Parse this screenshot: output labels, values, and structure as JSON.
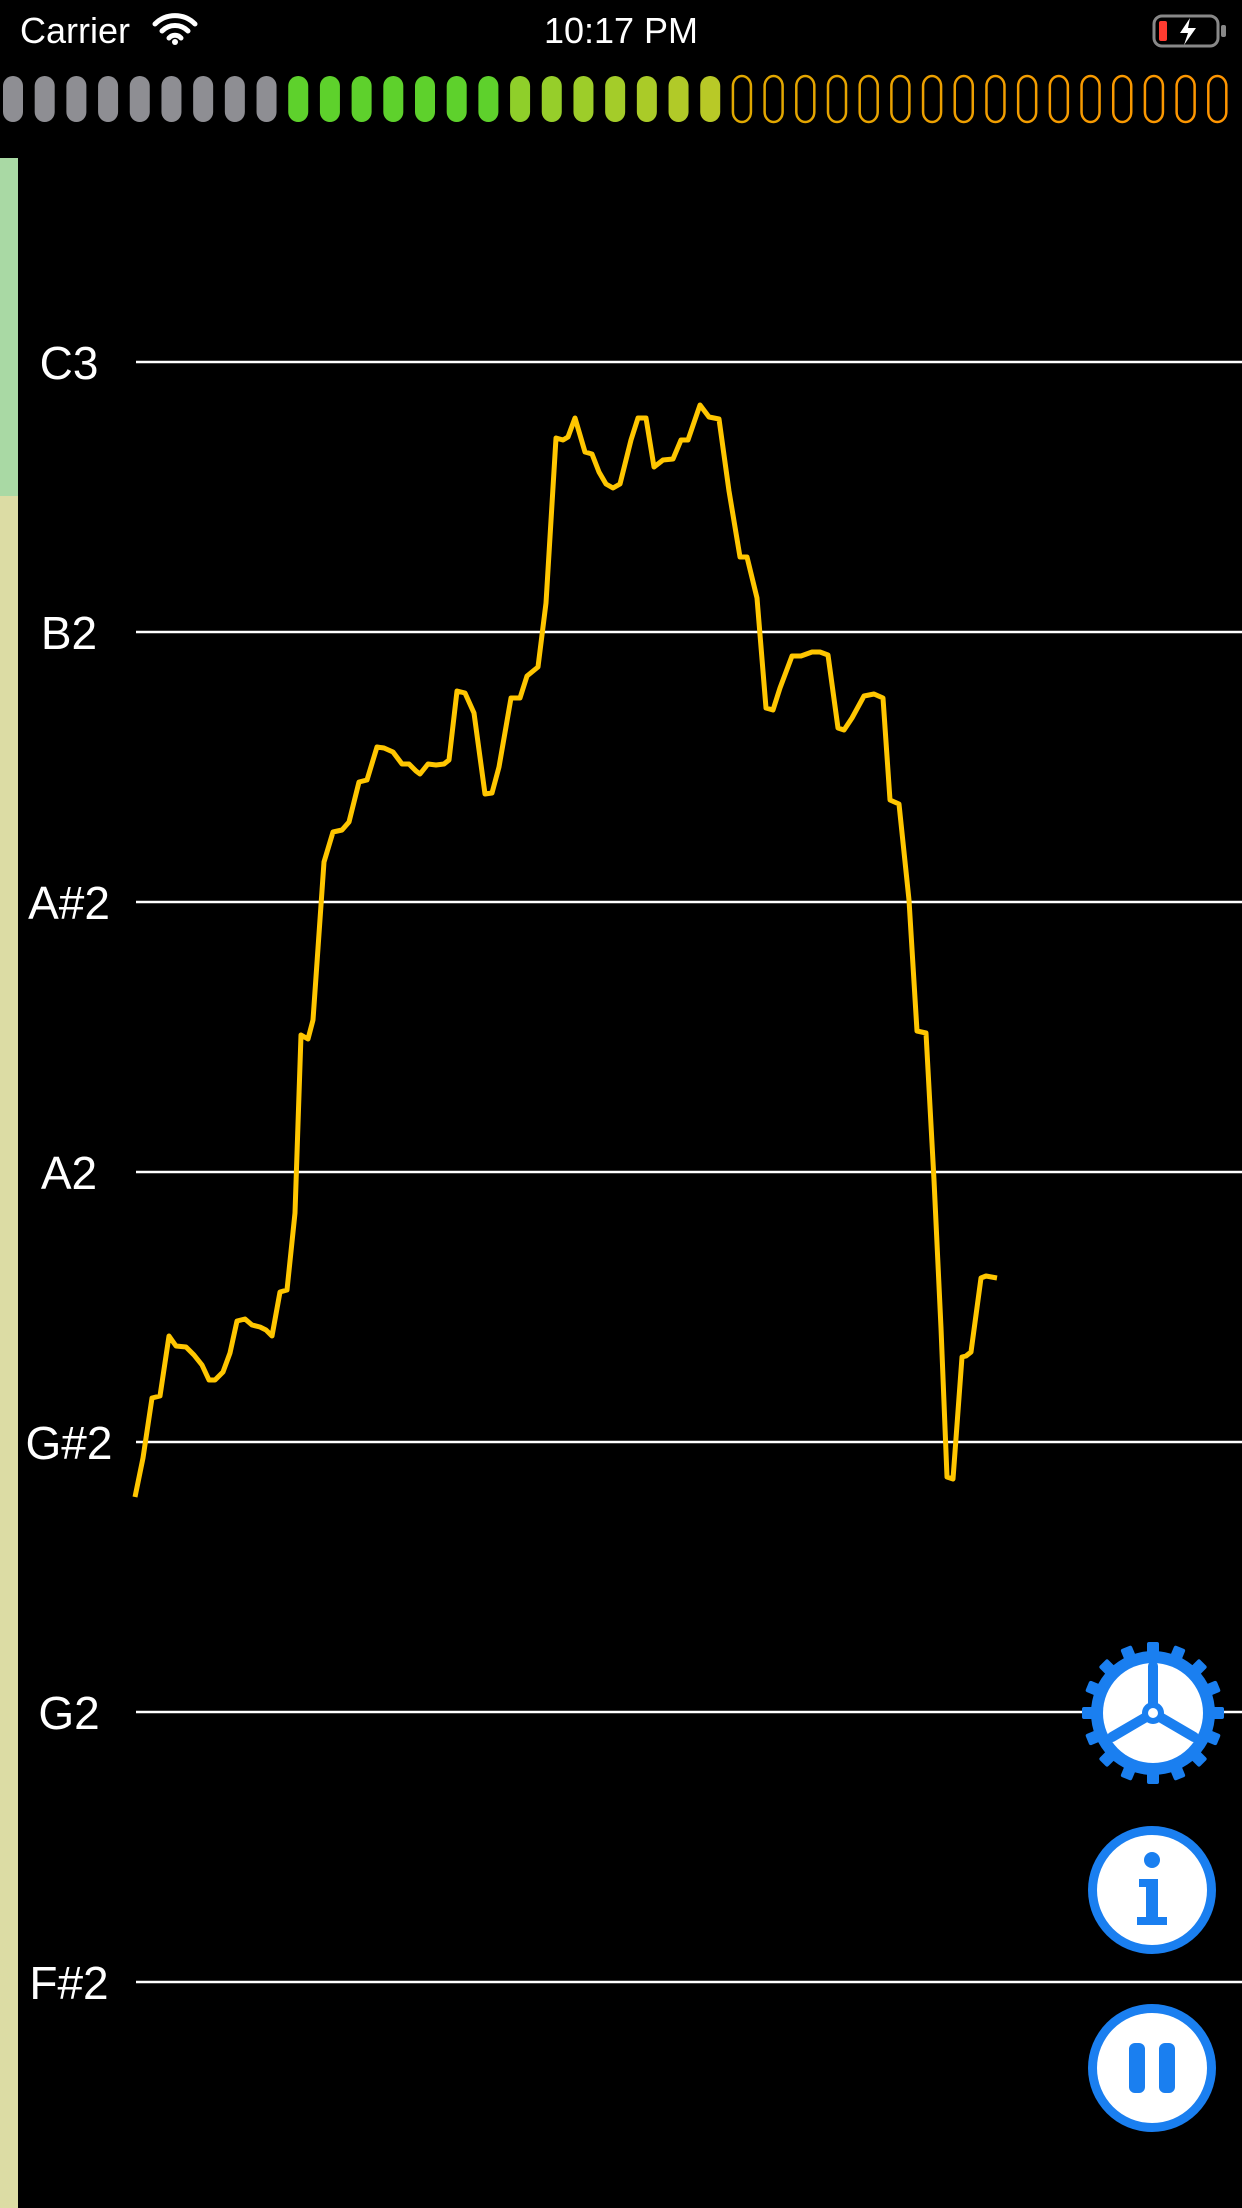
{
  "status_bar": {
    "carrier": "Carrier",
    "time": "10:17 PM",
    "wifi_icon": "wifi-icon",
    "battery_icon": "battery-charging-icon"
  },
  "level_meter": {
    "gray_count": 9,
    "green_count": 7,
    "yellow_count": 7,
    "empty_count": 16,
    "colors": {
      "gray": "#8e8e93",
      "green": "#5ed12c",
      "yellow_green": "#b8c927",
      "orange": "#ff9500",
      "amber": "#e0a800"
    }
  },
  "stripe": {
    "upper_color": "#a9d9a4",
    "lower_color": "#dcdca4"
  },
  "pitch_graph": {
    "notes": [
      "C3",
      "B2",
      "A#2",
      "A2",
      "G#2",
      "G2",
      "F#2"
    ],
    "trace_color": "#ffc600",
    "gridline_color": "#ffffff"
  },
  "buttons": {
    "settings_icon": "gear-icon",
    "info_icon": "info-icon",
    "pause_icon": "pause-icon",
    "accent": "#1a7ff0"
  }
}
